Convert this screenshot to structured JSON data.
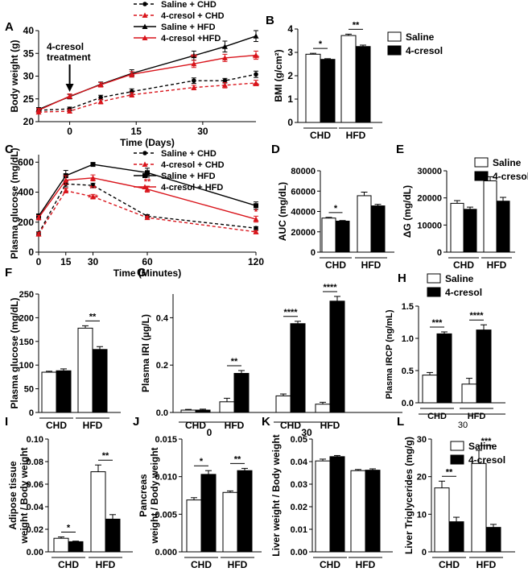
{
  "colors": {
    "black": "#000000",
    "red": "#d9141b",
    "white": "#ffffff"
  },
  "chart_data": [
    {
      "panel": "A",
      "type": "line",
      "ylabel": "Body weight (g)",
      "xlabel": "Time (Days)",
      "ylim": [
        20,
        40
      ],
      "yticks": [
        20,
        25,
        30,
        35,
        40
      ],
      "xlim": [
        -7,
        42
      ],
      "xticks": [
        0,
        15,
        30
      ],
      "annotation": [
        "4-cresol",
        "treatment"
      ],
      "legend": [
        "Saline + CHD",
        "4-cresol + CHD",
        "Saline + HFD",
        "4-cresol +HFD"
      ],
      "x": [
        -7,
        0,
        7,
        14,
        28,
        35,
        42
      ],
      "series": [
        {
          "name": "Saline + CHD",
          "color": "#000000",
          "dashed": true,
          "marker": "circle",
          "values": [
            22.5,
            22.8,
            25.3,
            26.6,
            29.0,
            29.0,
            30.4
          ],
          "err": [
            0.4,
            0.4,
            0.5,
            0.6,
            0.6,
            0.5,
            0.7
          ]
        },
        {
          "name": "4-cresol + CHD",
          "color": "#d9141b",
          "dashed": true,
          "marker": "triangle",
          "values": [
            22.1,
            22.3,
            24.4,
            25.9,
            27.5,
            28.0,
            28.5
          ],
          "err": [
            0.4,
            0.4,
            0.5,
            0.5,
            0.5,
            0.6,
            0.6
          ]
        },
        {
          "name": "Saline + HFD",
          "color": "#000000",
          "dashed": false,
          "marker": "triangle",
          "values": [
            22.7,
            25.5,
            28.2,
            30.6,
            34.5,
            36.5,
            38.8
          ],
          "err": [
            0.4,
            0.5,
            0.5,
            0.8,
            1.0,
            1.2,
            1.2
          ]
        },
        {
          "name": "4-cresol +HFD",
          "color": "#d9141b",
          "dashed": false,
          "marker": "triangle",
          "values": [
            22.5,
            25.6,
            28.1,
            30.4,
            32.7,
            34.0,
            34.6
          ],
          "err": [
            0.4,
            0.5,
            0.5,
            0.6,
            0.8,
            0.8,
            0.9
          ]
        }
      ],
      "sig": [
        {
          "x": 28,
          "text": "**",
          "y": 33.5
        },
        {
          "x": 28,
          "text": "*",
          "y": 26.3
        },
        {
          "x": 35,
          "text": "*",
          "y": 32.8
        },
        {
          "x": 42,
          "text": "**",
          "y": 33.3
        },
        {
          "x": 42,
          "text": "**",
          "y": 27.2
        }
      ]
    },
    {
      "panel": "B",
      "type": "bar",
      "ylabel": "BMI (g/cm²)",
      "ylim": [
        0,
        4
      ],
      "yticks": [
        0,
        1,
        2,
        3,
        4
      ],
      "groups": [
        "CHD",
        "HFD"
      ],
      "legend": [
        "Saline",
        "4-cresol"
      ],
      "series": [
        {
          "name": "Saline",
          "values": [
            2.92,
            3.72
          ],
          "err": [
            0.04,
            0.06
          ]
        },
        {
          "name": "4-cresol",
          "values": [
            2.7,
            3.25
          ],
          "err": [
            0.03,
            0.06
          ]
        }
      ],
      "sig": [
        "*",
        "**"
      ]
    },
    {
      "panel": "C",
      "type": "line",
      "ylabel": "Plasma glucose (mg/dL)",
      "xlabel": "Time (Minutes)",
      "ylim": [
        0,
        650
      ],
      "yticks": [
        0,
        200,
        400,
        600
      ],
      "xticks": [
        0,
        15,
        30,
        60,
        120
      ],
      "legend": [
        "Saline + CHD",
        "4-cresol + CHD",
        "Saline + HFD",
        "4-cresol + HFD"
      ],
      "x": [
        0,
        15,
        30,
        60,
        120
      ],
      "series": [
        {
          "name": "Saline + CHD",
          "color": "#000000",
          "dashed": true,
          "marker": "circle",
          "values": [
            125,
            455,
            445,
            240,
            160
          ],
          "err": [
            10,
            20,
            15,
            10,
            10
          ]
        },
        {
          "name": "4-cresol + CHD",
          "color": "#d9141b",
          "dashed": true,
          "marker": "triangle",
          "values": [
            120,
            410,
            370,
            230,
            135
          ],
          "err": [
            10,
            15,
            15,
            10,
            8
          ]
        },
        {
          "name": "Saline + HFD",
          "color": "#000000",
          "dashed": false,
          "marker": "square",
          "values": [
            240,
            510,
            585,
            530,
            310
          ],
          "err": [
            15,
            35,
            10,
            30,
            25
          ]
        },
        {
          "name": "4-cresol + HFD",
          "color": "#d9141b",
          "dashed": false,
          "marker": "triangle",
          "values": [
            230,
            480,
            495,
            420,
            220
          ],
          "err": [
            15,
            30,
            20,
            20,
            20
          ]
        }
      ],
      "sig": [
        {
          "x": 15,
          "text": "*",
          "y": 390
        },
        {
          "x": 30,
          "text": "*",
          "y": 455
        },
        {
          "x": 30,
          "text": "**",
          "y": 405
        },
        {
          "x": 30,
          "text": "***",
          "y": 345
        },
        {
          "x": 60,
          "text": "**",
          "y": 450
        },
        {
          "x": 120,
          "text": "*",
          "y": 250
        }
      ]
    },
    {
      "panel": "D",
      "type": "bar",
      "ylabel": "AUC (mg/dL)",
      "ylim": [
        0,
        80000
      ],
      "yticks": [
        0,
        20000,
        40000,
        60000,
        80000
      ],
      "groups": [
        "CHD",
        "HFD"
      ],
      "series": [
        {
          "name": "Saline",
          "values": [
            33500,
            55500
          ],
          "err": [
            700,
            3500
          ]
        },
        {
          "name": "4-cresol",
          "values": [
            30500,
            45500
          ],
          "err": [
            600,
            1500
          ]
        }
      ],
      "sig": [
        "*",
        ""
      ]
    },
    {
      "panel": "E",
      "type": "bar",
      "ylabel": "ΔG (mg/dL)",
      "ylim": [
        0,
        30000
      ],
      "yticks": [
        0,
        10000,
        20000,
        30000
      ],
      "groups": [
        "CHD",
        "HFD"
      ],
      "legend": [
        "Saline",
        "4-cresol"
      ],
      "series": [
        {
          "name": "Saline",
          "values": [
            18000,
            26300
          ],
          "err": [
            1000,
            1500
          ]
        },
        {
          "name": "4-cresol",
          "values": [
            15800,
            18800
          ],
          "err": [
            800,
            1400
          ]
        }
      ]
    },
    {
      "panel": "F",
      "type": "bar",
      "ylabel": "Plasma glucose (mg/dL)",
      "ylim": [
        0,
        250
      ],
      "yticks": [
        0,
        50,
        100,
        150,
        200,
        250
      ],
      "groups": [
        "CHD",
        "HFD"
      ],
      "series": [
        {
          "name": "Saline",
          "values": [
            85,
            178
          ],
          "err": [
            2,
            5
          ]
        },
        {
          "name": "4-cresol",
          "values": [
            88,
            133
          ],
          "err": [
            4,
            6
          ]
        }
      ],
      "sig": [
        "",
        "**"
      ]
    },
    {
      "panel": "G",
      "type": "bar",
      "ylabel": "Plasma IRI (µg/L)",
      "ylim": [
        0,
        0.5
      ],
      "yticks": [
        0.0,
        0.2,
        0.4
      ],
      "groups": [
        "CHD",
        "HFD",
        "CHD",
        "HFD"
      ],
      "timepoints": [
        "0",
        "30"
      ],
      "series": [
        {
          "name": "Saline",
          "values": [
            0.01,
            0.045,
            0.07,
            0.035
          ],
          "err": [
            0.003,
            0.015,
            0.008,
            0.008
          ]
        },
        {
          "name": "4-cresol",
          "values": [
            0.01,
            0.165,
            0.375,
            0.47
          ],
          "err": [
            0.004,
            0.012,
            0.01,
            0.02
          ]
        }
      ],
      "sig": [
        "",
        "**",
        "****",
        "****"
      ]
    },
    {
      "panel": "H",
      "type": "bar",
      "ylabel": "Plasma IRCP (ng/mL)",
      "ylim": [
        0,
        1.5
      ],
      "yticks": [
        0.0,
        0.5,
        1.0,
        1.5
      ],
      "groups": [
        "CHD",
        "HFD"
      ],
      "timepoint": "30",
      "legend": [
        "Saline",
        "4-cresol"
      ],
      "series": [
        {
          "name": "Saline",
          "values": [
            0.43,
            0.29
          ],
          "err": [
            0.04,
            0.09
          ]
        },
        {
          "name": "4-cresol",
          "values": [
            1.07,
            1.13
          ],
          "err": [
            0.03,
            0.08
          ]
        }
      ],
      "sig": [
        "***",
        "****"
      ]
    },
    {
      "panel": "I",
      "type": "bar",
      "ylabel": [
        "Adipose tissue",
        "weight / Body weight"
      ],
      "ylim": [
        0,
        0.1
      ],
      "yticks": [
        0.0,
        0.02,
        0.04,
        0.06,
        0.08,
        0.1
      ],
      "groups": [
        "CHD",
        "HFD"
      ],
      "series": [
        {
          "name": "Saline",
          "values": [
            0.012,
            0.071
          ],
          "err": [
            0.0012,
            0.006
          ]
        },
        {
          "name": "4-cresol",
          "values": [
            0.009,
            0.029
          ],
          "err": [
            0.0005,
            0.004
          ]
        }
      ],
      "sig": [
        "*",
        "**"
      ]
    },
    {
      "panel": "J",
      "type": "bar",
      "ylabel": [
        "Pancreas",
        "weight / Body weight"
      ],
      "ylim": [
        0,
        0.015
      ],
      "yticks": [
        0.0,
        0.005,
        0.01,
        0.015
      ],
      "groups": [
        "CHD",
        "HFD"
      ],
      "series": [
        {
          "name": "Saline",
          "values": [
            0.0069,
            0.0079
          ],
          "err": [
            0.0003,
            0.0002
          ]
        },
        {
          "name": "4-cresol",
          "values": [
            0.0103,
            0.0108
          ],
          "err": [
            0.0005,
            0.0003
          ]
        }
      ],
      "sig": [
        "*",
        "**"
      ]
    },
    {
      "panel": "K",
      "type": "bar",
      "ylabel": "Liver weight / Body weight",
      "ylim": [
        0,
        0.05
      ],
      "yticks": [
        0.0,
        0.01,
        0.02,
        0.03,
        0.04,
        0.05
      ],
      "groups": [
        "CHD",
        "HFD"
      ],
      "series": [
        {
          "name": "Saline",
          "values": [
            0.0403,
            0.036
          ],
          "err": [
            0.0008,
            0.0005
          ]
        },
        {
          "name": "4-cresol",
          "values": [
            0.0422,
            0.0362
          ],
          "err": [
            0.0005,
            0.0006
          ]
        }
      ]
    },
    {
      "panel": "L",
      "type": "bar",
      "ylabel": "Liver Triglycerides (mg/g)",
      "ylim": [
        0,
        30
      ],
      "yticks": [
        0,
        10,
        20,
        30
      ],
      "groups": [
        "CHD",
        "HFD"
      ],
      "legend": [
        "Saline",
        "4-cresol"
      ],
      "series": [
        {
          "name": "Saline",
          "values": [
            17,
            23.5
          ],
          "err": [
            1.8,
            3.5
          ]
        },
        {
          "name": "4-cresol",
          "values": [
            8,
            6.5
          ],
          "err": [
            1.2,
            0.8
          ]
        }
      ],
      "sig": [
        "**",
        "***"
      ]
    }
  ]
}
